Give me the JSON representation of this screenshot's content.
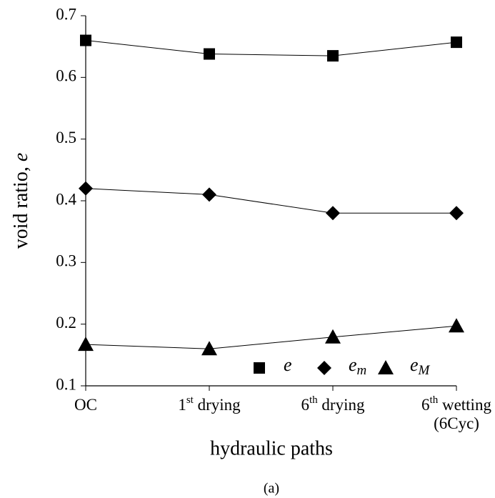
{
  "chart_data": {
    "type": "line",
    "categories": [
      "OC",
      "1st drying",
      "6th drying",
      "6th wetting (6Cyc)"
    ],
    "series": [
      {
        "name": "e",
        "marker": "square",
        "color": "#000000",
        "values": [
          0.66,
          0.638,
          0.635,
          0.657
        ]
      },
      {
        "name": "em",
        "marker": "diamond",
        "color": "#000000",
        "values": [
          0.42,
          0.41,
          0.38,
          0.38
        ]
      },
      {
        "name": "eM",
        "marker": "triangle",
        "color": "#000000",
        "values": [
          0.167,
          0.16,
          0.179,
          0.197
        ]
      }
    ],
    "ylim": [
      0.1,
      0.7
    ],
    "yticks": [
      0.1,
      0.2,
      0.3,
      0.4,
      0.5,
      0.6,
      0.7
    ],
    "y_label": "void ratio, e",
    "x_label": "hydraulic paths",
    "caption": "(a)",
    "grid": false,
    "legend": "lower right"
  }
}
